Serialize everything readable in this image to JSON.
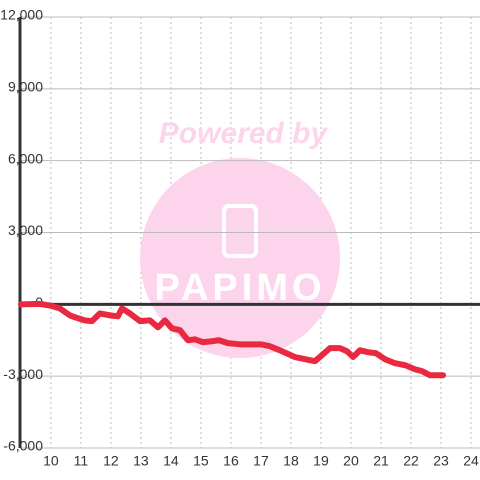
{
  "chart_data": {
    "type": "line",
    "watermark": {
      "top": "Powered by",
      "logo": "PAPIMO"
    },
    "x": [
      9,
      9.63,
      9.97,
      10.3,
      10.63,
      10.8,
      11.13,
      11.37,
      11.63,
      11.97,
      12.23,
      12.37,
      12.63,
      12.97,
      13.3,
      13.57,
      13.8,
      14.03,
      14.3,
      14.57,
      14.8,
      15.07,
      15.37,
      15.6,
      15.9,
      16.3,
      17,
      17.3,
      17.63,
      18.13,
      18.47,
      18.8,
      19.03,
      19.3,
      19.63,
      19.87,
      20.07,
      20.3,
      20.57,
      20.83,
      21.13,
      21.47,
      21.8,
      22.13,
      22.37,
      22.63,
      23.07
    ],
    "series": [
      {
        "color": "#e8293f",
        "values": [
          0,
          20,
          -50,
          -170,
          -460,
          -540,
          -670,
          -700,
          -380,
          -460,
          -500,
          -170,
          -380,
          -700,
          -670,
          -960,
          -670,
          -1000,
          -1080,
          -1500,
          -1460,
          -1580,
          -1540,
          -1500,
          -1620,
          -1670,
          -1670,
          -1750,
          -1920,
          -2200,
          -2290,
          -2375,
          -2125,
          -1830,
          -1830,
          -1960,
          -2200,
          -1920,
          -2000,
          -2040,
          -2290,
          -2460,
          -2540,
          -2710,
          -2790,
          -2960,
          -2960
        ]
      }
    ],
    "xlim": [
      8.97,
      24.3
    ],
    "xticks": [
      10,
      11,
      12,
      13,
      14,
      15,
      16,
      17,
      18,
      19,
      20,
      21,
      22,
      23,
      24
    ],
    "ylim": [
      -6000,
      12000
    ],
    "yticks": [
      {
        "value": -6000,
        "label": "-6,000"
      },
      {
        "value": -3000,
        "label": "-3,000"
      },
      0,
      {
        "value": 3000,
        "label": "3,000"
      },
      {
        "value": 6000,
        "label": "6,000"
      },
      {
        "value": 9000,
        "label": "9,000"
      },
      {
        "value": 12000,
        "label": "12,000"
      }
    ],
    "grid": true
  }
}
